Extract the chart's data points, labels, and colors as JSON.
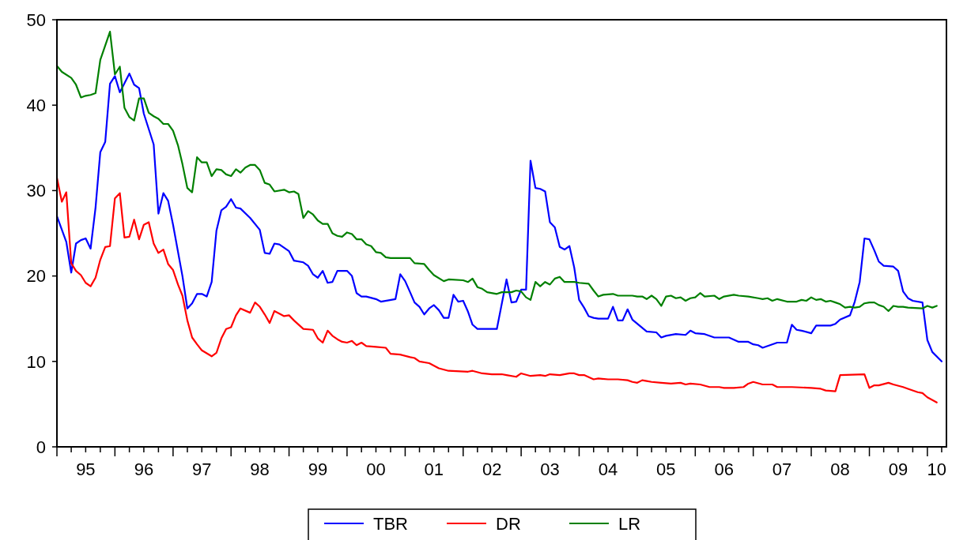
{
  "chart_data": {
    "type": "line",
    "legend": "bottom",
    "grid": false,
    "line_style": "solid",
    "marker": "none",
    "xlim": [
      "1995-01",
      "2010-05"
    ],
    "ylim": [
      0,
      50
    ],
    "yticks": [
      0,
      10,
      20,
      30,
      40,
      50
    ],
    "xticks": [
      {
        "value": "1995-07",
        "label": "95"
      },
      {
        "value": "1996-07",
        "label": "96"
      },
      {
        "value": "1997-07",
        "label": "97"
      },
      {
        "value": "1998-07",
        "label": "98"
      },
      {
        "value": "1999-07",
        "label": "99"
      },
      {
        "value": "2000-07",
        "label": "00"
      },
      {
        "value": "2001-07",
        "label": "01"
      },
      {
        "value": "2002-07",
        "label": "02"
      },
      {
        "value": "2003-07",
        "label": "03"
      },
      {
        "value": "2004-07",
        "label": "04"
      },
      {
        "value": "2005-07",
        "label": "05"
      },
      {
        "value": "2006-07",
        "label": "06"
      },
      {
        "value": "2007-07",
        "label": "07"
      },
      {
        "value": "2008-07",
        "label": "08"
      },
      {
        "value": "2009-07",
        "label": "09"
      },
      {
        "value": "2010-03",
        "label": "10"
      }
    ],
    "series": [
      {
        "name": "TBR",
        "color": "#0000ff",
        "x": [
          "1995-01",
          "1995-03",
          "1995-04",
          "1995-05",
          "1995-06",
          "1995-07",
          "1995-08",
          "1995-09",
          "1995-10",
          "1995-11",
          "1995-12",
          "1996-01",
          "1996-02",
          "1996-04",
          "1996-05",
          "1996-06",
          "1996-07",
          "1996-09",
          "1996-10",
          "1996-11",
          "1996-12",
          "1997-01",
          "1997-03",
          "1997-04",
          "1997-05",
          "1997-06",
          "1997-07",
          "1997-08",
          "1997-09",
          "1997-10",
          "1997-11",
          "1997-12",
          "1998-01",
          "1998-02",
          "1998-03",
          "1998-05",
          "1998-07",
          "1998-08",
          "1998-09",
          "1998-10",
          "1998-11",
          "1999-01",
          "1999-02",
          "1999-04",
          "1999-05",
          "1999-06",
          "1999-07",
          "1999-08",
          "1999-09",
          "1999-10",
          "1999-11",
          "2000-01",
          "2000-02",
          "2000-03",
          "2000-04",
          "2000-05",
          "2000-07",
          "2000-08",
          "2000-11",
          "2000-12",
          "2001-01",
          "2001-02",
          "2001-03",
          "2001-04",
          "2001-05",
          "2001-06",
          "2001-07",
          "2001-08",
          "2001-09",
          "2001-10",
          "2001-11",
          "2001-12",
          "2002-01",
          "2002-02",
          "2002-03",
          "2002-04",
          "2002-08",
          "2002-10",
          "2002-11",
          "2002-12",
          "2003-01",
          "2003-02",
          "2003-03",
          "2003-04",
          "2003-05",
          "2003-06",
          "2003-07",
          "2003-08",
          "2003-09",
          "2003-10",
          "2003-11",
          "2003-12",
          "2004-01",
          "2004-02",
          "2004-03",
          "2004-04",
          "2004-05",
          "2004-07",
          "2004-08",
          "2004-09",
          "2004-10",
          "2004-11",
          "2004-12",
          "2005-03",
          "2005-05",
          "2005-06",
          "2005-07",
          "2005-09",
          "2005-11",
          "2005-12",
          "2006-01",
          "2006-03",
          "2006-05",
          "2006-08",
          "2006-10",
          "2006-12",
          "2007-01",
          "2007-02",
          "2007-03",
          "2007-06",
          "2007-08",
          "2007-09",
          "2007-10",
          "2007-11",
          "2008-01",
          "2008-02",
          "2008-05",
          "2008-06",
          "2008-07",
          "2008-09",
          "2008-10",
          "2008-11",
          "2008-12",
          "2009-01",
          "2009-02",
          "2009-03",
          "2009-04",
          "2009-06",
          "2009-07",
          "2009-08",
          "2009-09",
          "2009-10",
          "2009-12",
          "2010-01",
          "2010-02",
          "2010-04"
        ],
        "values": [
          27.0,
          24.0,
          20.4,
          23.8,
          24.2,
          24.4,
          23.2,
          28.0,
          34.5,
          35.7,
          42.5,
          43.4,
          41.5,
          43.7,
          42.4,
          42.0,
          39.0,
          35.4,
          27.3,
          29.7,
          28.8,
          26.0,
          20.0,
          16.2,
          16.8,
          17.9,
          17.9,
          17.6,
          19.3,
          25.3,
          27.7,
          28.1,
          29.0,
          28.0,
          27.9,
          26.8,
          25.4,
          22.7,
          22.6,
          23.8,
          23.7,
          22.9,
          21.8,
          21.6,
          21.2,
          20.2,
          19.8,
          20.6,
          19.2,
          19.3,
          20.6,
          20.6,
          20.0,
          18.0,
          17.6,
          17.6,
          17.3,
          17.0,
          17.3,
          20.2,
          19.4,
          18.1,
          16.9,
          16.4,
          15.5,
          16.2,
          16.6,
          16.0,
          15.1,
          15.1,
          17.8,
          17.0,
          17.1,
          15.8,
          14.3,
          13.8,
          13.8,
          19.6,
          16.9,
          17.0,
          18.4,
          18.4,
          33.5,
          30.3,
          30.2,
          29.9,
          26.3,
          25.7,
          23.4,
          23.1,
          23.5,
          21.0,
          17.2,
          16.3,
          15.3,
          15.1,
          15.0,
          15.0,
          16.4,
          14.8,
          14.8,
          16.1,
          14.9,
          13.5,
          13.4,
          12.8,
          13.0,
          13.2,
          13.1,
          13.6,
          13.3,
          13.2,
          12.8,
          12.8,
          12.3,
          12.3,
          12.0,
          11.9,
          11.6,
          12.2,
          12.2,
          14.3,
          13.7,
          13.6,
          13.3,
          14.2,
          14.2,
          14.4,
          14.9,
          15.4,
          17.0,
          19.3,
          24.4,
          24.3,
          23.0,
          21.7,
          21.2,
          21.1,
          20.6,
          18.2,
          17.4,
          17.1,
          16.9,
          12.5,
          11.1,
          10.0
        ]
      },
      {
        "name": "DR",
        "color": "#ff0000",
        "x": [
          "1995-01",
          "1995-02",
          "1995-03",
          "1995-04",
          "1995-05",
          "1995-06",
          "1995-07",
          "1995-08",
          "1995-09",
          "1995-10",
          "1995-11",
          "1995-12",
          "1996-01",
          "1996-02",
          "1996-03",
          "1996-04",
          "1996-05",
          "1996-06",
          "1996-07",
          "1996-08",
          "1996-09",
          "1996-10",
          "1996-11",
          "1996-12",
          "1997-01",
          "1997-02",
          "1997-03",
          "1997-04",
          "1997-05",
          "1997-06",
          "1997-07",
          "1997-09",
          "1997-10",
          "1997-11",
          "1997-12",
          "1998-01",
          "1998-02",
          "1998-03",
          "1998-05",
          "1998-06",
          "1998-07",
          "1998-08",
          "1998-09",
          "1998-10",
          "1998-11",
          "1998-12",
          "1999-01",
          "1999-02",
          "1999-04",
          "1999-06",
          "1999-07",
          "1999-08",
          "1999-09",
          "1999-10",
          "1999-11",
          "1999-12",
          "2000-01",
          "2000-02",
          "2000-03",
          "2000-04",
          "2000-05",
          "2000-07",
          "2000-09",
          "2000-10",
          "2000-12",
          "2001-02",
          "2001-03",
          "2001-04",
          "2001-06",
          "2001-08",
          "2001-10",
          "2002-02",
          "2002-03",
          "2002-05",
          "2002-07",
          "2002-09",
          "2002-10",
          "2002-12",
          "2003-01",
          "2003-03",
          "2003-05",
          "2003-06",
          "2003-07",
          "2003-09",
          "2003-11",
          "2003-12",
          "2004-01",
          "2004-02",
          "2004-04",
          "2004-05",
          "2004-07",
          "2004-09",
          "2004-11",
          "2004-12",
          "2005-01",
          "2005-02",
          "2005-03",
          "2005-04",
          "2005-06",
          "2005-08",
          "2005-10",
          "2005-11",
          "2005-12",
          "2006-02",
          "2006-04",
          "2006-06",
          "2006-07",
          "2006-09",
          "2006-11",
          "2006-12",
          "2007-01",
          "2007-03",
          "2007-05",
          "2007-06",
          "2007-08",
          "2007-09",
          "2008-01",
          "2008-03",
          "2008-04",
          "2008-06",
          "2008-07",
          "2008-12",
          "2009-01",
          "2009-02",
          "2009-03",
          "2009-05",
          "2009-06",
          "2009-08",
          "2009-09",
          "2009-11",
          "2009-12",
          "2010-01",
          "2010-03"
        ],
        "values": [
          31.5,
          28.7,
          29.8,
          21.5,
          20.6,
          20.1,
          19.2,
          18.8,
          19.8,
          21.9,
          23.4,
          23.5,
          29.1,
          29.7,
          24.5,
          24.6,
          26.6,
          24.3,
          26.0,
          26.3,
          23.8,
          22.7,
          23.1,
          21.4,
          20.7,
          19.0,
          17.7,
          14.8,
          12.8,
          12.0,
          11.3,
          10.6,
          11.0,
          12.7,
          13.8,
          14.0,
          15.4,
          16.2,
          15.7,
          16.9,
          16.4,
          15.5,
          14.5,
          15.9,
          15.6,
          15.3,
          15.4,
          14.8,
          13.8,
          13.7,
          12.7,
          12.2,
          13.6,
          13.0,
          12.6,
          12.3,
          12.2,
          12.4,
          11.9,
          12.2,
          11.8,
          11.7,
          11.6,
          10.9,
          10.8,
          10.5,
          10.4,
          10.0,
          9.8,
          9.2,
          8.9,
          8.8,
          8.9,
          8.6,
          8.5,
          8.5,
          8.4,
          8.2,
          8.6,
          8.3,
          8.4,
          8.3,
          8.5,
          8.4,
          8.6,
          8.6,
          8.4,
          8.4,
          7.9,
          8.0,
          7.9,
          7.9,
          7.8,
          7.6,
          7.5,
          7.8,
          7.7,
          7.6,
          7.5,
          7.4,
          7.5,
          7.3,
          7.4,
          7.3,
          7.0,
          7.0,
          6.9,
          6.9,
          7.0,
          7.4,
          7.6,
          7.3,
          7.3,
          7.0,
          7.0,
          7.0,
          6.9,
          6.8,
          6.6,
          6.5,
          8.4,
          8.5,
          6.9,
          7.2,
          7.2,
          7.5,
          7.3,
          7.0,
          6.8,
          6.4,
          6.3,
          5.8,
          5.2
        ]
      },
      {
        "name": "LR",
        "color": "#008000",
        "x": [
          "1995-01",
          "1995-02",
          "1995-04",
          "1995-05",
          "1995-06",
          "1995-07",
          "1995-08",
          "1995-09",
          "1995-10",
          "1995-12",
          "1996-01",
          "1996-02",
          "1996-03",
          "1996-04",
          "1996-05",
          "1996-06",
          "1996-07",
          "1996-08",
          "1996-09",
          "1996-10",
          "1996-11",
          "1996-12",
          "1997-01",
          "1997-02",
          "1997-03",
          "1997-04",
          "1997-05",
          "1997-06",
          "1997-07",
          "1997-08",
          "1997-09",
          "1997-10",
          "1997-11",
          "1997-12",
          "1998-01",
          "1998-02",
          "1998-03",
          "1998-04",
          "1998-05",
          "1998-06",
          "1998-07",
          "1998-08",
          "1998-09",
          "1998-10",
          "1998-12",
          "1999-01",
          "1999-02",
          "1999-03",
          "1999-04",
          "1999-05",
          "1999-06",
          "1999-07",
          "1999-08",
          "1999-09",
          "1999-10",
          "1999-11",
          "1999-12",
          "2000-01",
          "2000-02",
          "2000-03",
          "2000-04",
          "2000-05",
          "2000-06",
          "2000-07",
          "2000-08",
          "2000-09",
          "2000-10",
          "2001-02",
          "2001-03",
          "2001-05",
          "2001-06",
          "2001-07",
          "2001-09",
          "2001-10",
          "2002-01",
          "2002-02",
          "2002-03",
          "2002-04",
          "2002-05",
          "2002-06",
          "2002-08",
          "2002-09",
          "2002-11",
          "2002-12",
          "2003-01",
          "2003-02",
          "2003-03",
          "2003-04",
          "2003-05",
          "2003-06",
          "2003-07",
          "2003-08",
          "2003-09",
          "2003-10",
          "2003-12",
          "2004-01",
          "2004-03",
          "2004-04",
          "2004-05",
          "2004-06",
          "2004-08",
          "2004-09",
          "2004-12",
          "2005-01",
          "2005-02",
          "2005-03",
          "2005-04",
          "2005-05",
          "2005-06",
          "2005-07",
          "2005-08",
          "2005-09",
          "2005-10",
          "2005-11",
          "2005-12",
          "2006-01",
          "2006-02",
          "2006-03",
          "2006-05",
          "2006-06",
          "2006-07",
          "2006-09",
          "2006-10",
          "2006-12",
          "2007-02",
          "2007-03",
          "2007-04",
          "2007-05",
          "2007-06",
          "2007-08",
          "2007-10",
          "2007-11",
          "2007-12",
          "2008-01",
          "2008-02",
          "2008-03",
          "2008-04",
          "2008-05",
          "2008-06",
          "2008-07",
          "2008-08",
          "2008-09",
          "2008-10",
          "2008-11",
          "2008-12",
          "2009-01",
          "2009-02",
          "2009-03",
          "2009-04",
          "2009-05",
          "2009-06",
          "2009-07",
          "2009-08",
          "2009-09",
          "2009-12",
          "2010-01",
          "2010-02",
          "2010-03"
        ],
        "values": [
          44.6,
          43.9,
          43.2,
          42.4,
          40.9,
          41.1,
          41.2,
          41.4,
          45.3,
          48.6,
          43.6,
          44.5,
          39.7,
          38.6,
          38.2,
          40.8,
          40.8,
          39.1,
          38.7,
          38.4,
          37.8,
          37.8,
          37.0,
          35.3,
          33.1,
          30.3,
          29.8,
          33.9,
          33.3,
          33.3,
          31.7,
          32.5,
          32.4,
          31.9,
          31.7,
          32.5,
          32.1,
          32.7,
          33.0,
          33.0,
          32.4,
          30.9,
          30.7,
          29.9,
          30.1,
          29.8,
          29.9,
          29.6,
          26.8,
          27.6,
          27.2,
          26.5,
          26.1,
          26.1,
          25.0,
          24.7,
          24.6,
          25.1,
          24.9,
          24.3,
          24.3,
          23.7,
          23.5,
          22.8,
          22.7,
          22.2,
          22.1,
          22.1,
          21.5,
          21.4,
          20.7,
          20.1,
          19.4,
          19.6,
          19.5,
          19.3,
          19.7,
          18.7,
          18.5,
          18.1,
          17.9,
          18.1,
          18.1,
          18.3,
          18.2,
          17.5,
          17.2,
          19.3,
          18.8,
          19.3,
          19.0,
          19.7,
          19.9,
          19.3,
          19.3,
          19.2,
          19.1,
          18.3,
          17.6,
          17.8,
          17.9,
          17.7,
          17.7,
          17.6,
          17.6,
          17.3,
          17.7,
          17.3,
          16.5,
          17.6,
          17.7,
          17.4,
          17.5,
          17.1,
          17.4,
          17.5,
          18.0,
          17.6,
          17.7,
          17.3,
          17.6,
          17.8,
          17.7,
          17.6,
          17.4,
          17.3,
          17.4,
          17.1,
          17.3,
          17.0,
          17.0,
          17.2,
          17.1,
          17.5,
          17.2,
          17.3,
          17.0,
          17.1,
          16.9,
          16.7,
          16.3,
          16.4,
          16.3,
          16.4,
          16.8,
          16.9,
          16.9,
          16.6,
          16.4,
          15.9,
          16.5,
          16.4,
          16.4,
          16.3,
          16.2,
          16.5,
          16.3,
          16.5
        ]
      }
    ]
  }
}
